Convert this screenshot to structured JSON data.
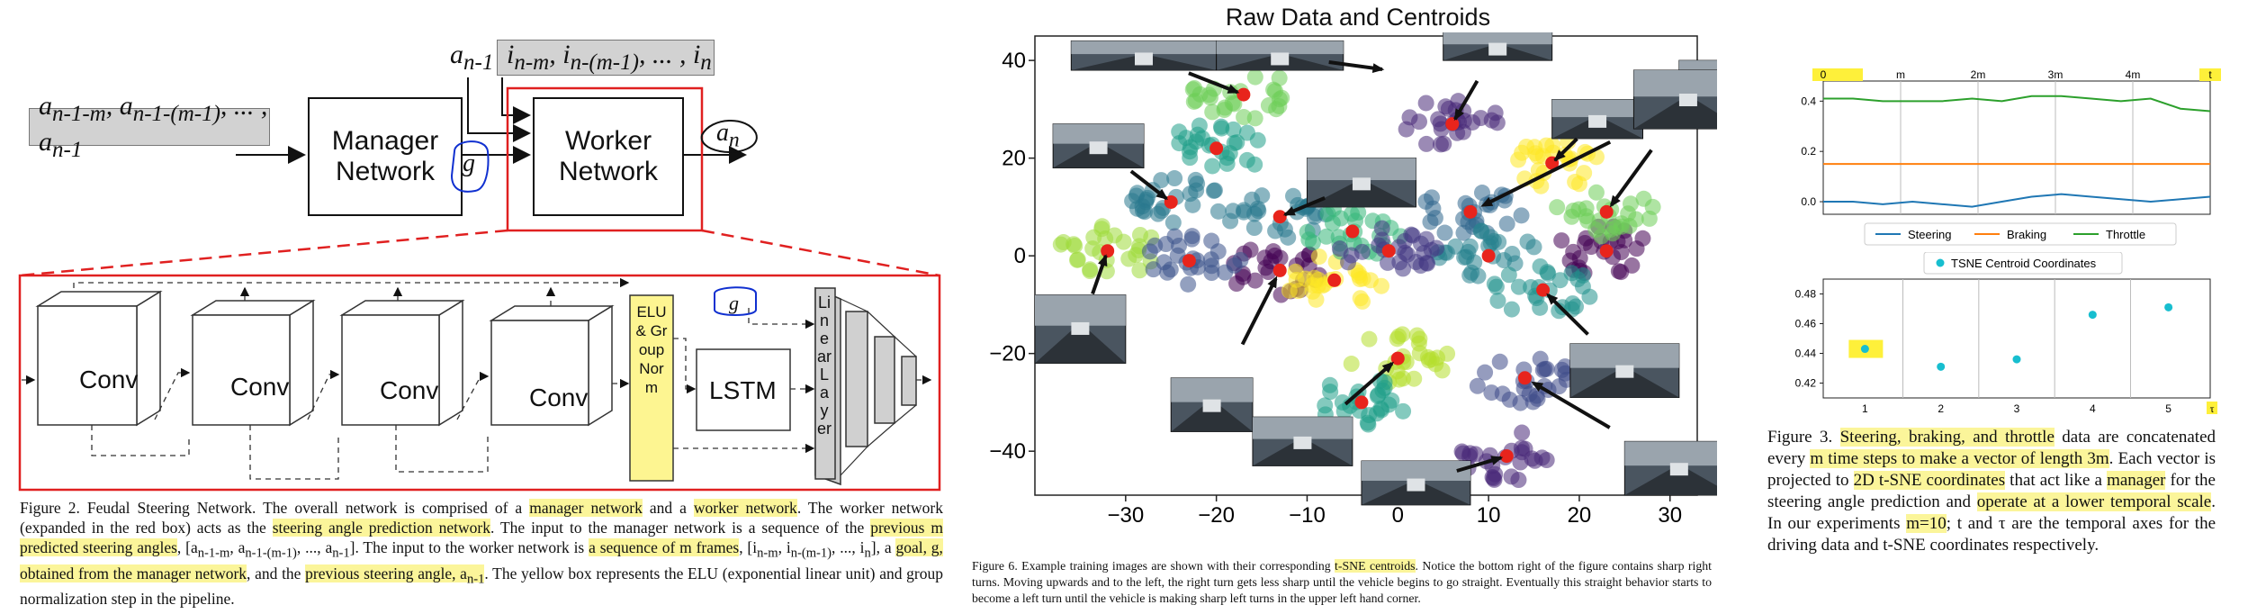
{
  "fig2": {
    "input_actions": "a_{n-1-m}, a_{n-1-(m-1)}, ... , a_{n-1}",
    "input_frames": "i_{n-m}, i_{n-(m-1)}, ... , i_n",
    "a_prev": "a_{n-1}",
    "manager_label": "Manager Network",
    "worker_label": "Worker Network",
    "goal": "g",
    "output": "a_n",
    "conv_labels": [
      "Conv",
      "Conv",
      "Conv",
      "Conv"
    ],
    "elu_label": "ELU & Group Norm",
    "lstm_label": "LSTM",
    "linear_label": "Linear Layer",
    "caption_parts": [
      {
        "t": "Figure 2. Feudal Steering Network. The overall network is comprised of a ",
        "h": false
      },
      {
        "t": "manager network",
        "h": true
      },
      {
        "t": " and a ",
        "h": false
      },
      {
        "t": "worker network",
        "h": true
      },
      {
        "t": ". The worker network (expanded in the red box) acts as the ",
        "h": false
      },
      {
        "t": "steering angle prediction network",
        "h": true
      },
      {
        "t": ". The input to the manager network is a sequence of the ",
        "h": false
      },
      {
        "t": "previous m predicted steering angles",
        "h": true
      },
      {
        "t": ", [a_{n-1-m}, a_{n-1-(m-1)}, ..., a_{n-1}]. The input to the worker network is ",
        "h": false
      },
      {
        "t": "a sequence of m frames",
        "h": true
      },
      {
        "t": ", [i_{n-m}, i_{n-(m-1)}, ..., i_n], a ",
        "h": false
      },
      {
        "t": "goal, g, obtained from the manager network",
        "h": true
      },
      {
        "t": ", and the ",
        "h": false
      },
      {
        "t": "previous steering angle, a_{n-1}",
        "h": true
      },
      {
        "t": ". The yellow box represents the ELU (exponential linear unit) and group normalization step in the pipeline.",
        "h": false
      }
    ]
  },
  "fig6": {
    "caption_parts": [
      {
        "t": "Figure 6. Example training images are shown with their corresponding ",
        "h": false
      },
      {
        "t": "t-SNE centroids",
        "h": true
      },
      {
        "t": ". Notice the bottom right of the figure contains sharp right turns. Moving upwards and to the left, the right turn gets less sharp until the vehicle begins to go straight. Eventually this straight behavior starts to become a left turn until the vehicle is making sharp left turns in the upper left hand corner.",
        "h": false
      }
    ]
  },
  "fig3": {
    "caption_parts": [
      {
        "t": "Figure 3. ",
        "h": false
      },
      {
        "t": "Steering, braking, and throttle",
        "h": true
      },
      {
        "t": " data are concatenated every ",
        "h": false
      },
      {
        "t": "m time steps to make a vector of length 3m",
        "h": true
      },
      {
        "t": ". Each vector is projected to ",
        "h": false
      },
      {
        "t": "2D t-SNE coordinates",
        "h": true
      },
      {
        "t": " that act like a ",
        "h": false
      },
      {
        "t": "manager",
        "h": true
      },
      {
        "t": " for the steering angle prediction and ",
        "h": false
      },
      {
        "t": "operate at a lower temporal scale",
        "h": true
      },
      {
        "t": ". In our experiments ",
        "h": false
      },
      {
        "t": "m=10",
        "h": true
      },
      {
        "t": "; t and τ are the temporal axes for the driving data and t-SNE coordinates respectively.",
        "h": false
      }
    ]
  },
  "chart_data": [
    {
      "type": "scatter",
      "title": "Raw Data and Centroids",
      "xlim": [
        -40,
        33
      ],
      "ylim": [
        -49,
        45
      ],
      "xticks": [
        -30,
        -20,
        -10,
        0,
        10,
        20,
        30
      ],
      "yticks": [
        -40,
        -20,
        0,
        20,
        40
      ],
      "clusters": [
        {
          "color": "#2a788e",
          "centroid": [
            -25,
            11
          ]
        },
        {
          "color": "#9fda3a",
          "centroid": [
            -32,
            1
          ]
        },
        {
          "color": "#482979",
          "centroid": [
            6,
            27
          ]
        },
        {
          "color": "#6ece58",
          "centroid": [
            -17,
            33
          ]
        },
        {
          "color": "#1f9e89",
          "centroid": [
            -20,
            22
          ]
        },
        {
          "color": "#440154",
          "centroid": [
            -13,
            -3
          ]
        },
        {
          "color": "#fde725",
          "centroid": [
            -7,
            -5
          ]
        },
        {
          "color": "#2a788e",
          "centroid": [
            -13,
            8
          ]
        },
        {
          "color": "#3b528b",
          "centroid": [
            -23,
            -1
          ]
        },
        {
          "color": "#35b779",
          "centroid": [
            -5,
            5
          ]
        },
        {
          "color": "#fde725",
          "centroid": [
            17,
            19
          ]
        },
        {
          "color": "#31688e",
          "centroid": [
            8,
            9
          ]
        },
        {
          "color": "#440154",
          "centroid": [
            23,
            1
          ]
        },
        {
          "color": "#6ece58",
          "centroid": [
            23,
            9
          ]
        },
        {
          "color": "#26828e",
          "centroid": [
            10,
            0
          ]
        },
        {
          "color": "#21918c",
          "centroid": [
            16,
            -7
          ]
        },
        {
          "color": "#b5de2b",
          "centroid": [
            0,
            -21
          ]
        },
        {
          "color": "#443983",
          "centroid": [
            -1,
            1
          ]
        },
        {
          "color": "#1f9e89",
          "centroid": [
            -4,
            -30
          ]
        },
        {
          "color": "#482878",
          "centroid": [
            12,
            -41
          ]
        },
        {
          "color": "#3e4a89",
          "centroid": [
            14,
            -25
          ]
        }
      ]
    },
    {
      "type": "line",
      "xlabel": "",
      "xtick_labels": [
        "0",
        "m",
        "2m",
        "3m",
        "4m",
        "t"
      ],
      "ylim": [
        -0.05,
        0.48
      ],
      "yticks": [
        0.0,
        0.2,
        0.4
      ],
      "series": [
        {
          "name": "Steering",
          "color": "#1f77b4",
          "values": [
            0.0,
            0.0,
            -0.01,
            0.0,
            -0.01,
            -0.02,
            0.0,
            0.02,
            0.03,
            0.02,
            0.01,
            0.0,
            0.01,
            0.02
          ]
        },
        {
          "name": "Braking",
          "color": "#ff7f0e",
          "values": [
            0.15,
            0.15,
            0.15,
            0.15,
            0.15,
            0.15,
            0.15,
            0.15,
            0.15,
            0.15,
            0.15,
            0.15,
            0.15,
            0.15
          ]
        },
        {
          "name": "Throttle",
          "color": "#2ca02c",
          "values": [
            0.41,
            0.41,
            0.4,
            0.4,
            0.4,
            0.41,
            0.4,
            0.42,
            0.42,
            0.41,
            0.4,
            0.41,
            0.37,
            0.36
          ]
        }
      ]
    },
    {
      "type": "scatter",
      "legend": "TSNE Centroid Coordinates",
      "x_label": "τ",
      "xticks": [
        1,
        2,
        3,
        4,
        5
      ],
      "ylim": [
        0.41,
        0.49
      ],
      "yticks": [
        0.42,
        0.44,
        0.46,
        0.48
      ],
      "color": "#17becf",
      "points": [
        [
          1,
          0.443
        ],
        [
          2,
          0.431
        ],
        [
          3,
          0.436
        ],
        [
          4,
          0.466
        ],
        [
          5,
          0.471
        ]
      ]
    }
  ]
}
